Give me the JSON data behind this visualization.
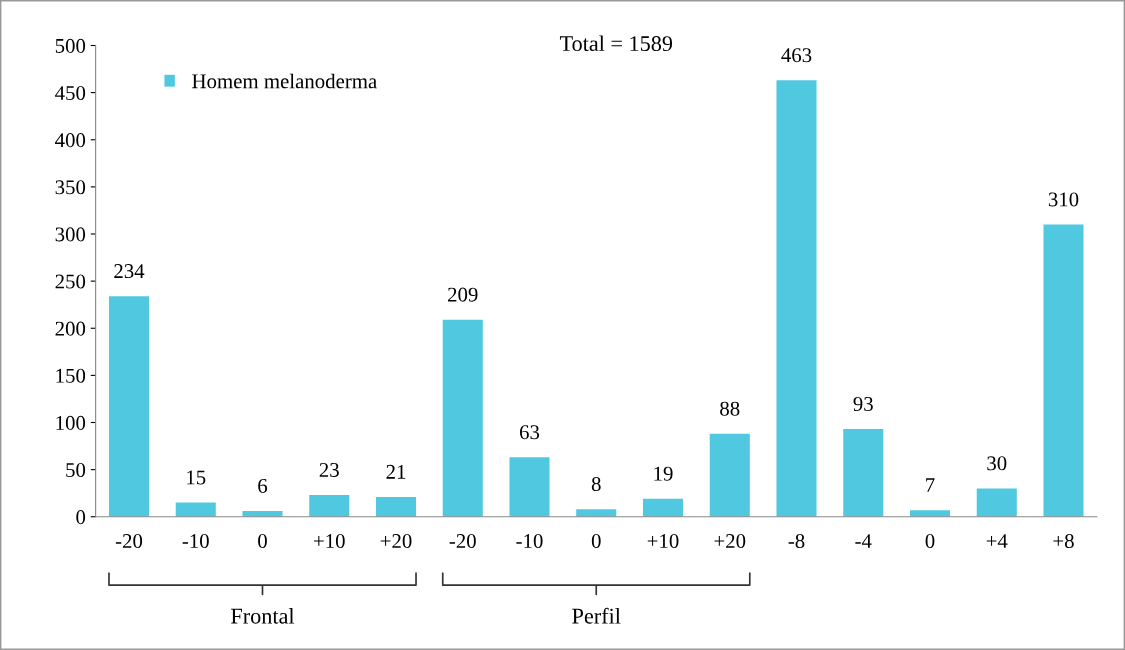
{
  "chart_data": {
    "type": "bar",
    "categories": [
      "-20",
      "-10",
      "0",
      "+10",
      "+20",
      "-20",
      "-10",
      "0",
      "+10",
      "+20",
      "-8",
      "-4",
      "0",
      "+4",
      "+8"
    ],
    "series": [
      {
        "name": "Homem melanoderma",
        "color": "#4fc8e0",
        "values": [
          234,
          15,
          6,
          23,
          21,
          209,
          63,
          8,
          19,
          88,
          463,
          93,
          7,
          30,
          310
        ]
      }
    ],
    "ylim": [
      0,
      500
    ],
    "yticks": [
      0,
      50,
      100,
      150,
      200,
      250,
      300,
      350,
      400,
      450,
      500
    ],
    "data_labels": true,
    "legend": "top left",
    "grid": false,
    "annotations": [
      "Total = 1589",
      "Frontal",
      "Perfil"
    ]
  }
}
